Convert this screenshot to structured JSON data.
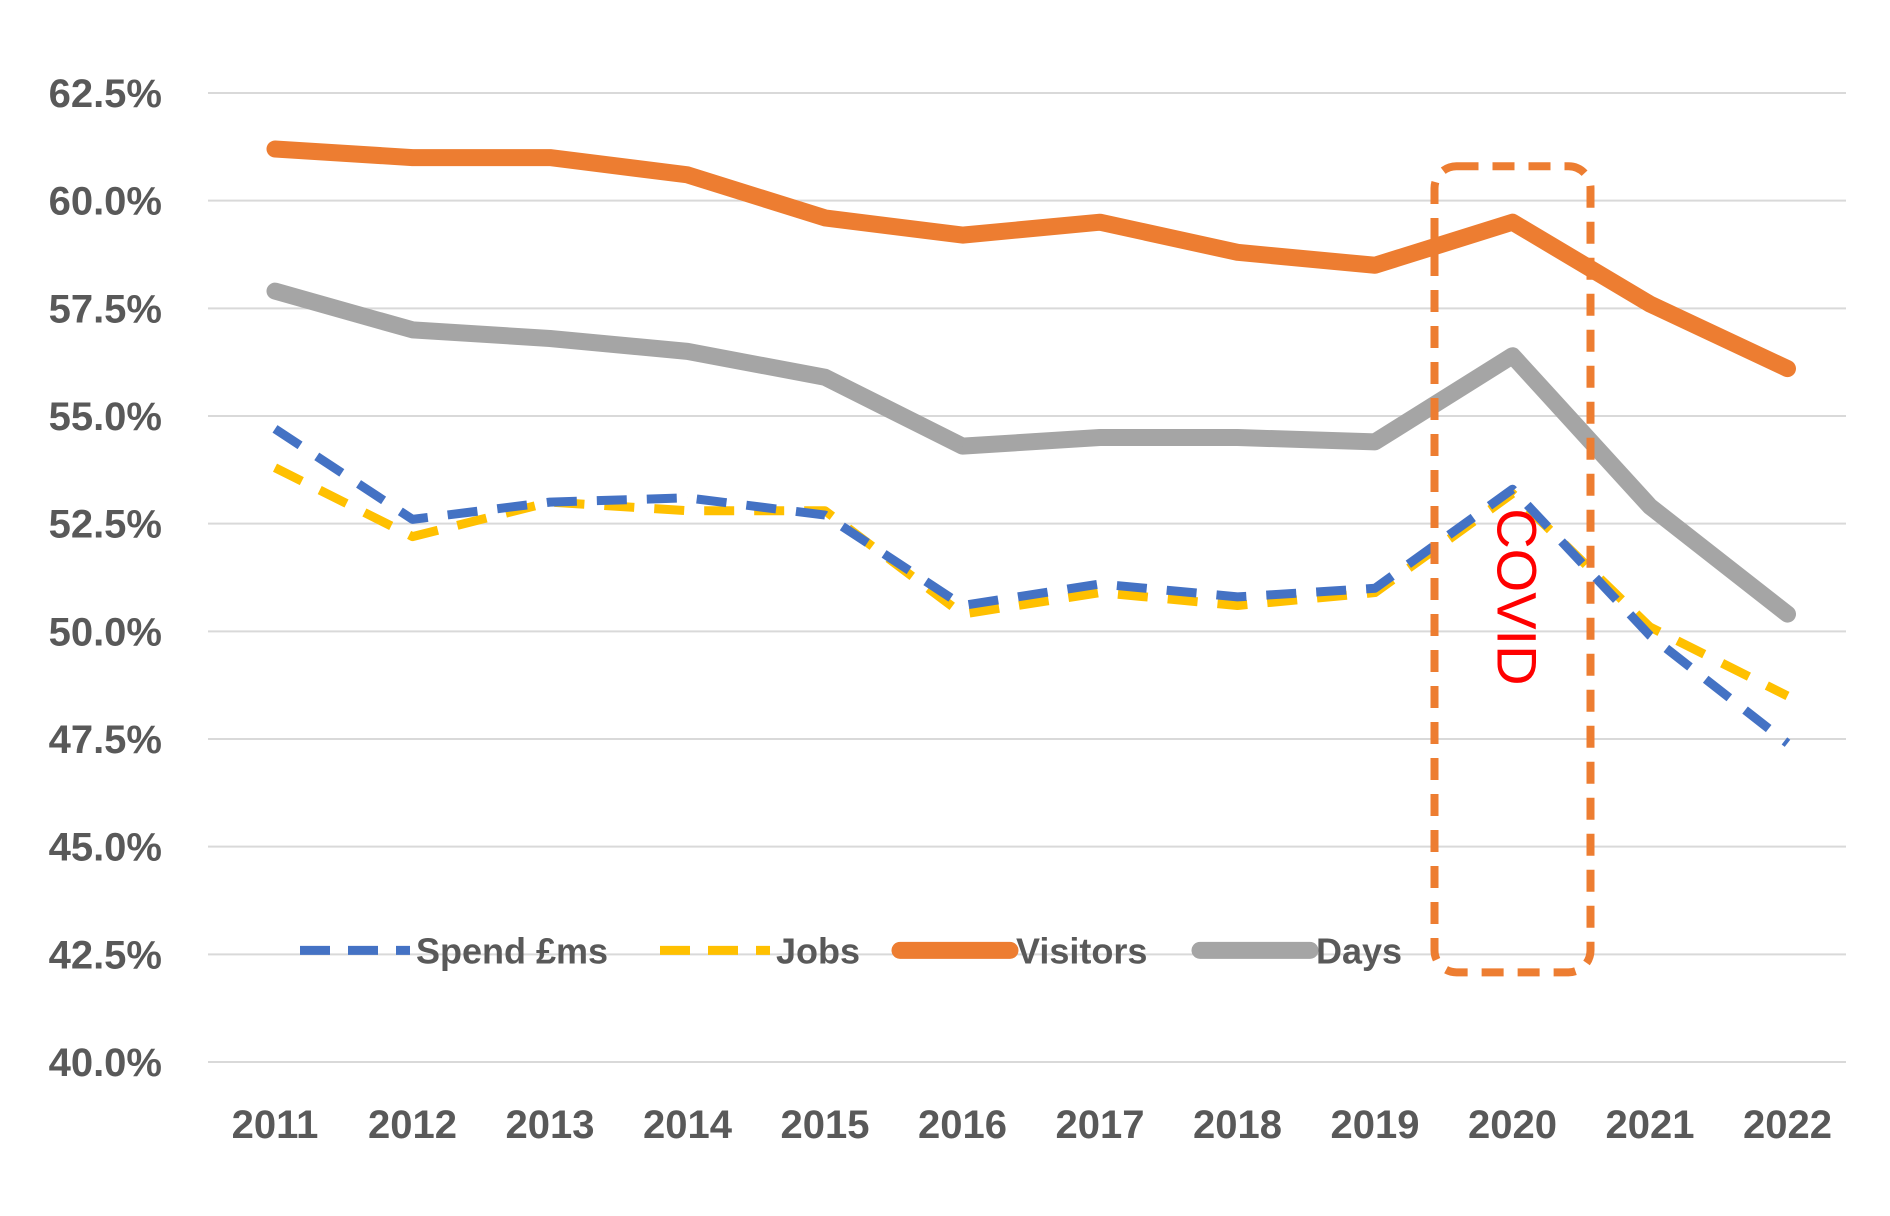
{
  "chart_data": {
    "type": "line",
    "title": "",
    "xlabel": "",
    "ylabel": "",
    "x": [
      "2011",
      "2012",
      "2013",
      "2014",
      "2015",
      "2016",
      "2017",
      "2018",
      "2019",
      "2020",
      "2021",
      "2022"
    ],
    "ylim": [
      40.0,
      62.5
    ],
    "yticks": [
      "40.0%",
      "42.5%",
      "45.0%",
      "47.5%",
      "50.0%",
      "52.5%",
      "55.0%",
      "57.5%",
      "60.0%",
      "62.5%"
    ],
    "ytick_values": [
      40.0,
      42.5,
      45.0,
      47.5,
      50.0,
      52.5,
      55.0,
      57.5,
      60.0,
      62.5
    ],
    "grid": true,
    "legend_position": "bottom-left inside",
    "series": [
      {
        "name": "Spend £ms",
        "color": "#4472C4",
        "style": "dashed",
        "values": [
          54.7,
          52.6,
          53.0,
          53.1,
          52.7,
          50.6,
          51.1,
          50.8,
          51.0,
          53.3,
          49.9,
          47.4
        ]
      },
      {
        "name": "Jobs",
        "color": "#FFC000",
        "style": "dashed",
        "values": [
          53.8,
          52.2,
          53.0,
          52.8,
          52.8,
          50.4,
          50.9,
          50.6,
          50.9,
          53.2,
          50.1,
          48.5
        ]
      },
      {
        "name": "Visitors",
        "color": "#ED7D31",
        "style": "solid",
        "values": [
          61.2,
          61.0,
          61.0,
          60.6,
          59.6,
          59.2,
          59.5,
          58.8,
          58.5,
          59.5,
          57.6,
          56.1
        ]
      },
      {
        "name": "Days",
        "color": "#A5A5A5",
        "style": "solid",
        "values": [
          57.9,
          57.0,
          56.8,
          56.5,
          55.9,
          54.3,
          54.5,
          54.5,
          54.4,
          56.4,
          52.9,
          50.4
        ]
      }
    ],
    "annotation": {
      "text": "COVID",
      "x": "2020",
      "color": "#FF0000",
      "box_color": "#ED7D31"
    }
  }
}
